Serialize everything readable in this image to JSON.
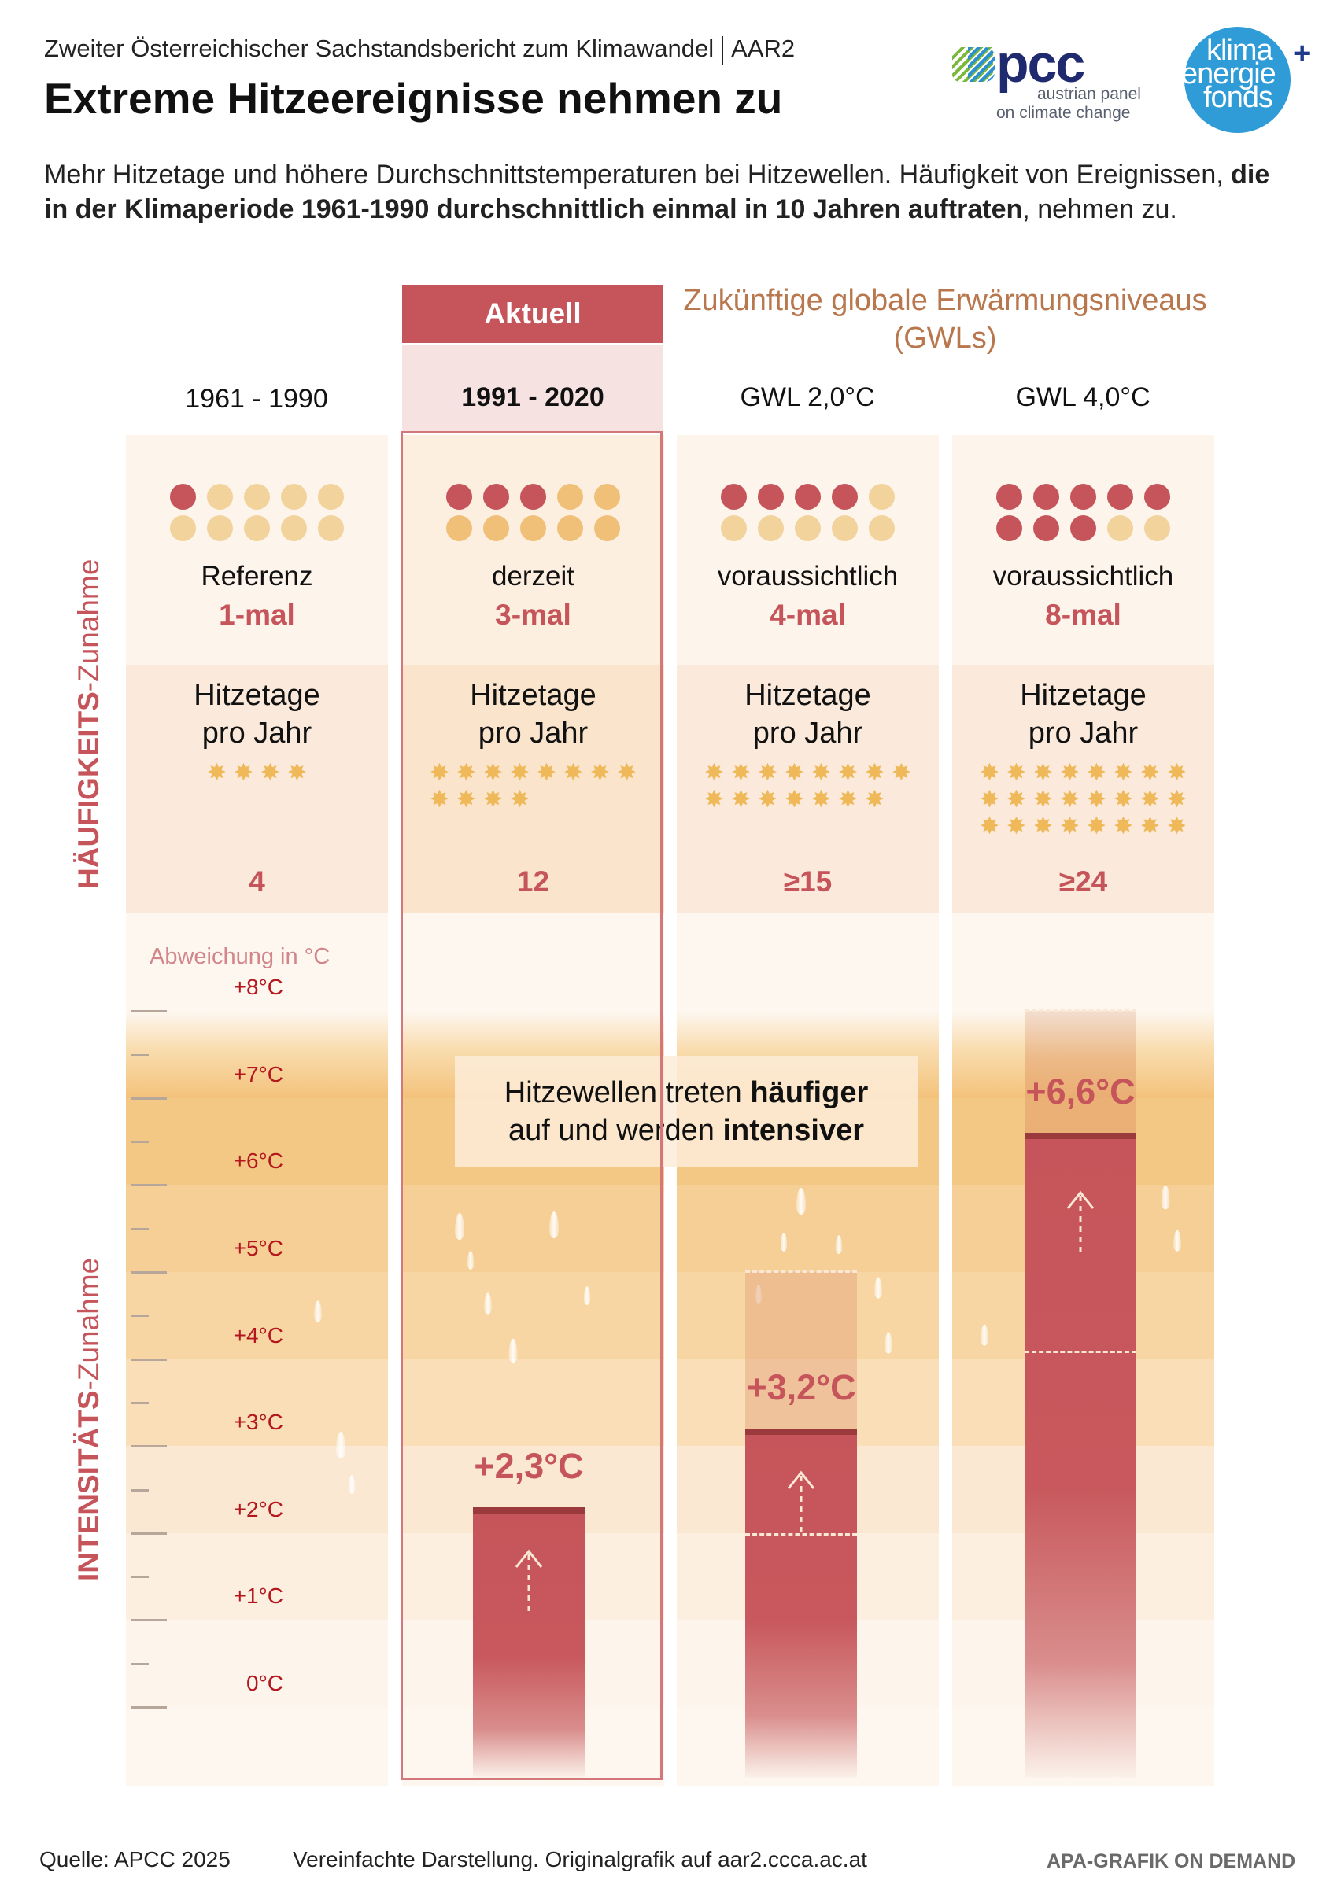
{
  "header": {
    "kicker": "Zweiter Österreichischer Sachstandsbericht zum Klimawandel",
    "kicker_tag": "AAR2",
    "title": "Extreme Hitzeereignisse nehmen zu",
    "lead_1": "Mehr Hitzetage und höhere Durchschnittstemperaturen bei Hitzewellen. Häufigkeit von Ereignissen, ",
    "lead_bold": "die in der Klimaperiode 1961-1990 durchschnittlich einmal in 10 Jahren auftraten",
    "lead_2": ", nehmen zu."
  },
  "logos": {
    "apcc_word": "pcc",
    "apcc_line1": "austrian panel",
    "apcc_line2": "on climate change",
    "kef_line1": "klima",
    "kef_line2": "energie",
    "kef_line3": "fonds",
    "kef_plus": "+"
  },
  "labels": {
    "aktuell": "Aktuell",
    "future": "Zukünftige globale Erwärmungsniveaus (GWLs)",
    "freq_section_bold": "HÄUFIGKEITS",
    "freq_section_rest": "-Zunahme",
    "int_section_bold": "INTENSITÄTS",
    "int_section_rest": "-Zunahme",
    "axis_title": "Abweichung in  °C",
    "hot_days_line1": "Hitzetage",
    "hot_days_line2": "pro Jahr",
    "callout_1": "Hitzewellen treten ",
    "callout_1b": "häufiger",
    "callout_2": "auf und werden ",
    "callout_2b": "intensiver"
  },
  "footer": {
    "source": "Quelle: APCC 2025",
    "note": "Vereinfachte Darstellung. Originalgrafik auf aar2.ccca.ac.at",
    "brand": "APA-GRAFIK ON DEMAND"
  },
  "colors": {
    "accent_red": "#c5555a",
    "dot_inactive": "#f3d39c",
    "star": "#efb95a",
    "future_heading": "#b9774d",
    "tick_label": "#b3161c"
  },
  "chart_data": {
    "type": "bar",
    "title": "Extreme Hitzeereignisse nehmen zu",
    "categories": [
      "1961 - 1990",
      "1991 - 2020",
      "GWL 2,0°C",
      "GWL 4,0°C"
    ],
    "frequency": {
      "qualifiers": [
        "Referenz",
        "derzeit",
        "voraussichtlich",
        "voraussichtlich"
      ],
      "labels": [
        "1-mal",
        "3-mal",
        "4-mal",
        "8-mal"
      ],
      "events_per_10_dots": [
        1,
        3,
        4,
        8
      ],
      "dots_total": 10
    },
    "hot_days_per_year": {
      "labels": [
        "4",
        "12",
        "≥15",
        "≥24"
      ],
      "values": [
        4,
        12,
        15,
        24
      ]
    },
    "intensity": {
      "ylabel": "Abweichung in °C",
      "ylim": [
        0,
        8
      ],
      "yticks": [
        "0°C",
        "+1°C",
        "+2°C",
        "+3°C",
        "+4°C",
        "+5°C",
        "+6°C",
        "+7°C",
        "+8°C"
      ],
      "series": [
        {
          "name": "Abweichung",
          "values": [
            null,
            2.3,
            3.2,
            6.6
          ],
          "labels": [
            "",
            "+2,3°C",
            "+3,2°C",
            "+6,6°C"
          ]
        }
      ],
      "ranges": [
        null,
        null,
        [
          2.0,
          5.0
        ],
        [
          4.1,
          8.0
        ]
      ]
    }
  }
}
